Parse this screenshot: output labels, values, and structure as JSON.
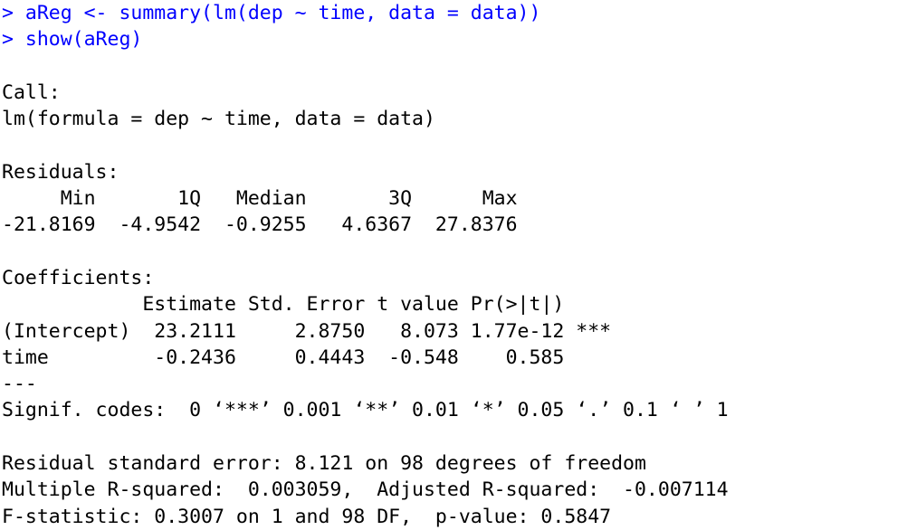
{
  "console": {
    "lines": [
      {
        "text": "> aReg <- summary(lm(dep ~ time, data = data))",
        "type": "command"
      },
      {
        "text": "> show(aReg)",
        "type": "command"
      },
      {
        "text": "",
        "type": "output"
      },
      {
        "text": "Call:",
        "type": "output"
      },
      {
        "text": "lm(formula = dep ~ time, data = data)",
        "type": "output"
      },
      {
        "text": "",
        "type": "output"
      },
      {
        "text": "Residuals:",
        "type": "output"
      },
      {
        "text": "     Min       1Q   Median       3Q      Max ",
        "type": "output"
      },
      {
        "text": "-21.8169  -4.9542  -0.9255   4.6367  27.8376 ",
        "type": "output"
      },
      {
        "text": "",
        "type": "output"
      },
      {
        "text": "Coefficients:",
        "type": "output"
      },
      {
        "text": "            Estimate Std. Error t value Pr(>|t|)    ",
        "type": "output"
      },
      {
        "text": "(Intercept)  23.2111     2.8750   8.073 1.77e-12 ***",
        "type": "output"
      },
      {
        "text": "time         -0.2436     0.4443  -0.548    0.585    ",
        "type": "output"
      },
      {
        "text": "---",
        "type": "output"
      },
      {
        "text": "Signif. codes:  0 ‘***’ 0.001 ‘**’ 0.01 ‘*’ 0.05 ‘.’ 0.1 ‘ ’ 1",
        "type": "output"
      },
      {
        "text": "",
        "type": "output"
      },
      {
        "text": "Residual standard error: 8.121 on 98 degrees of freedom",
        "type": "output"
      },
      {
        "text": "Multiple R-squared:  0.003059,  Adjusted R-squared:  -0.007114 ",
        "type": "output"
      },
      {
        "text": "F-statistic: 0.3007 on 1 and 98 DF,  p-value: 0.5847",
        "type": "output"
      }
    ]
  },
  "colors": {
    "command": "#0000ff",
    "output": "#000000",
    "background": "#ffffff"
  }
}
